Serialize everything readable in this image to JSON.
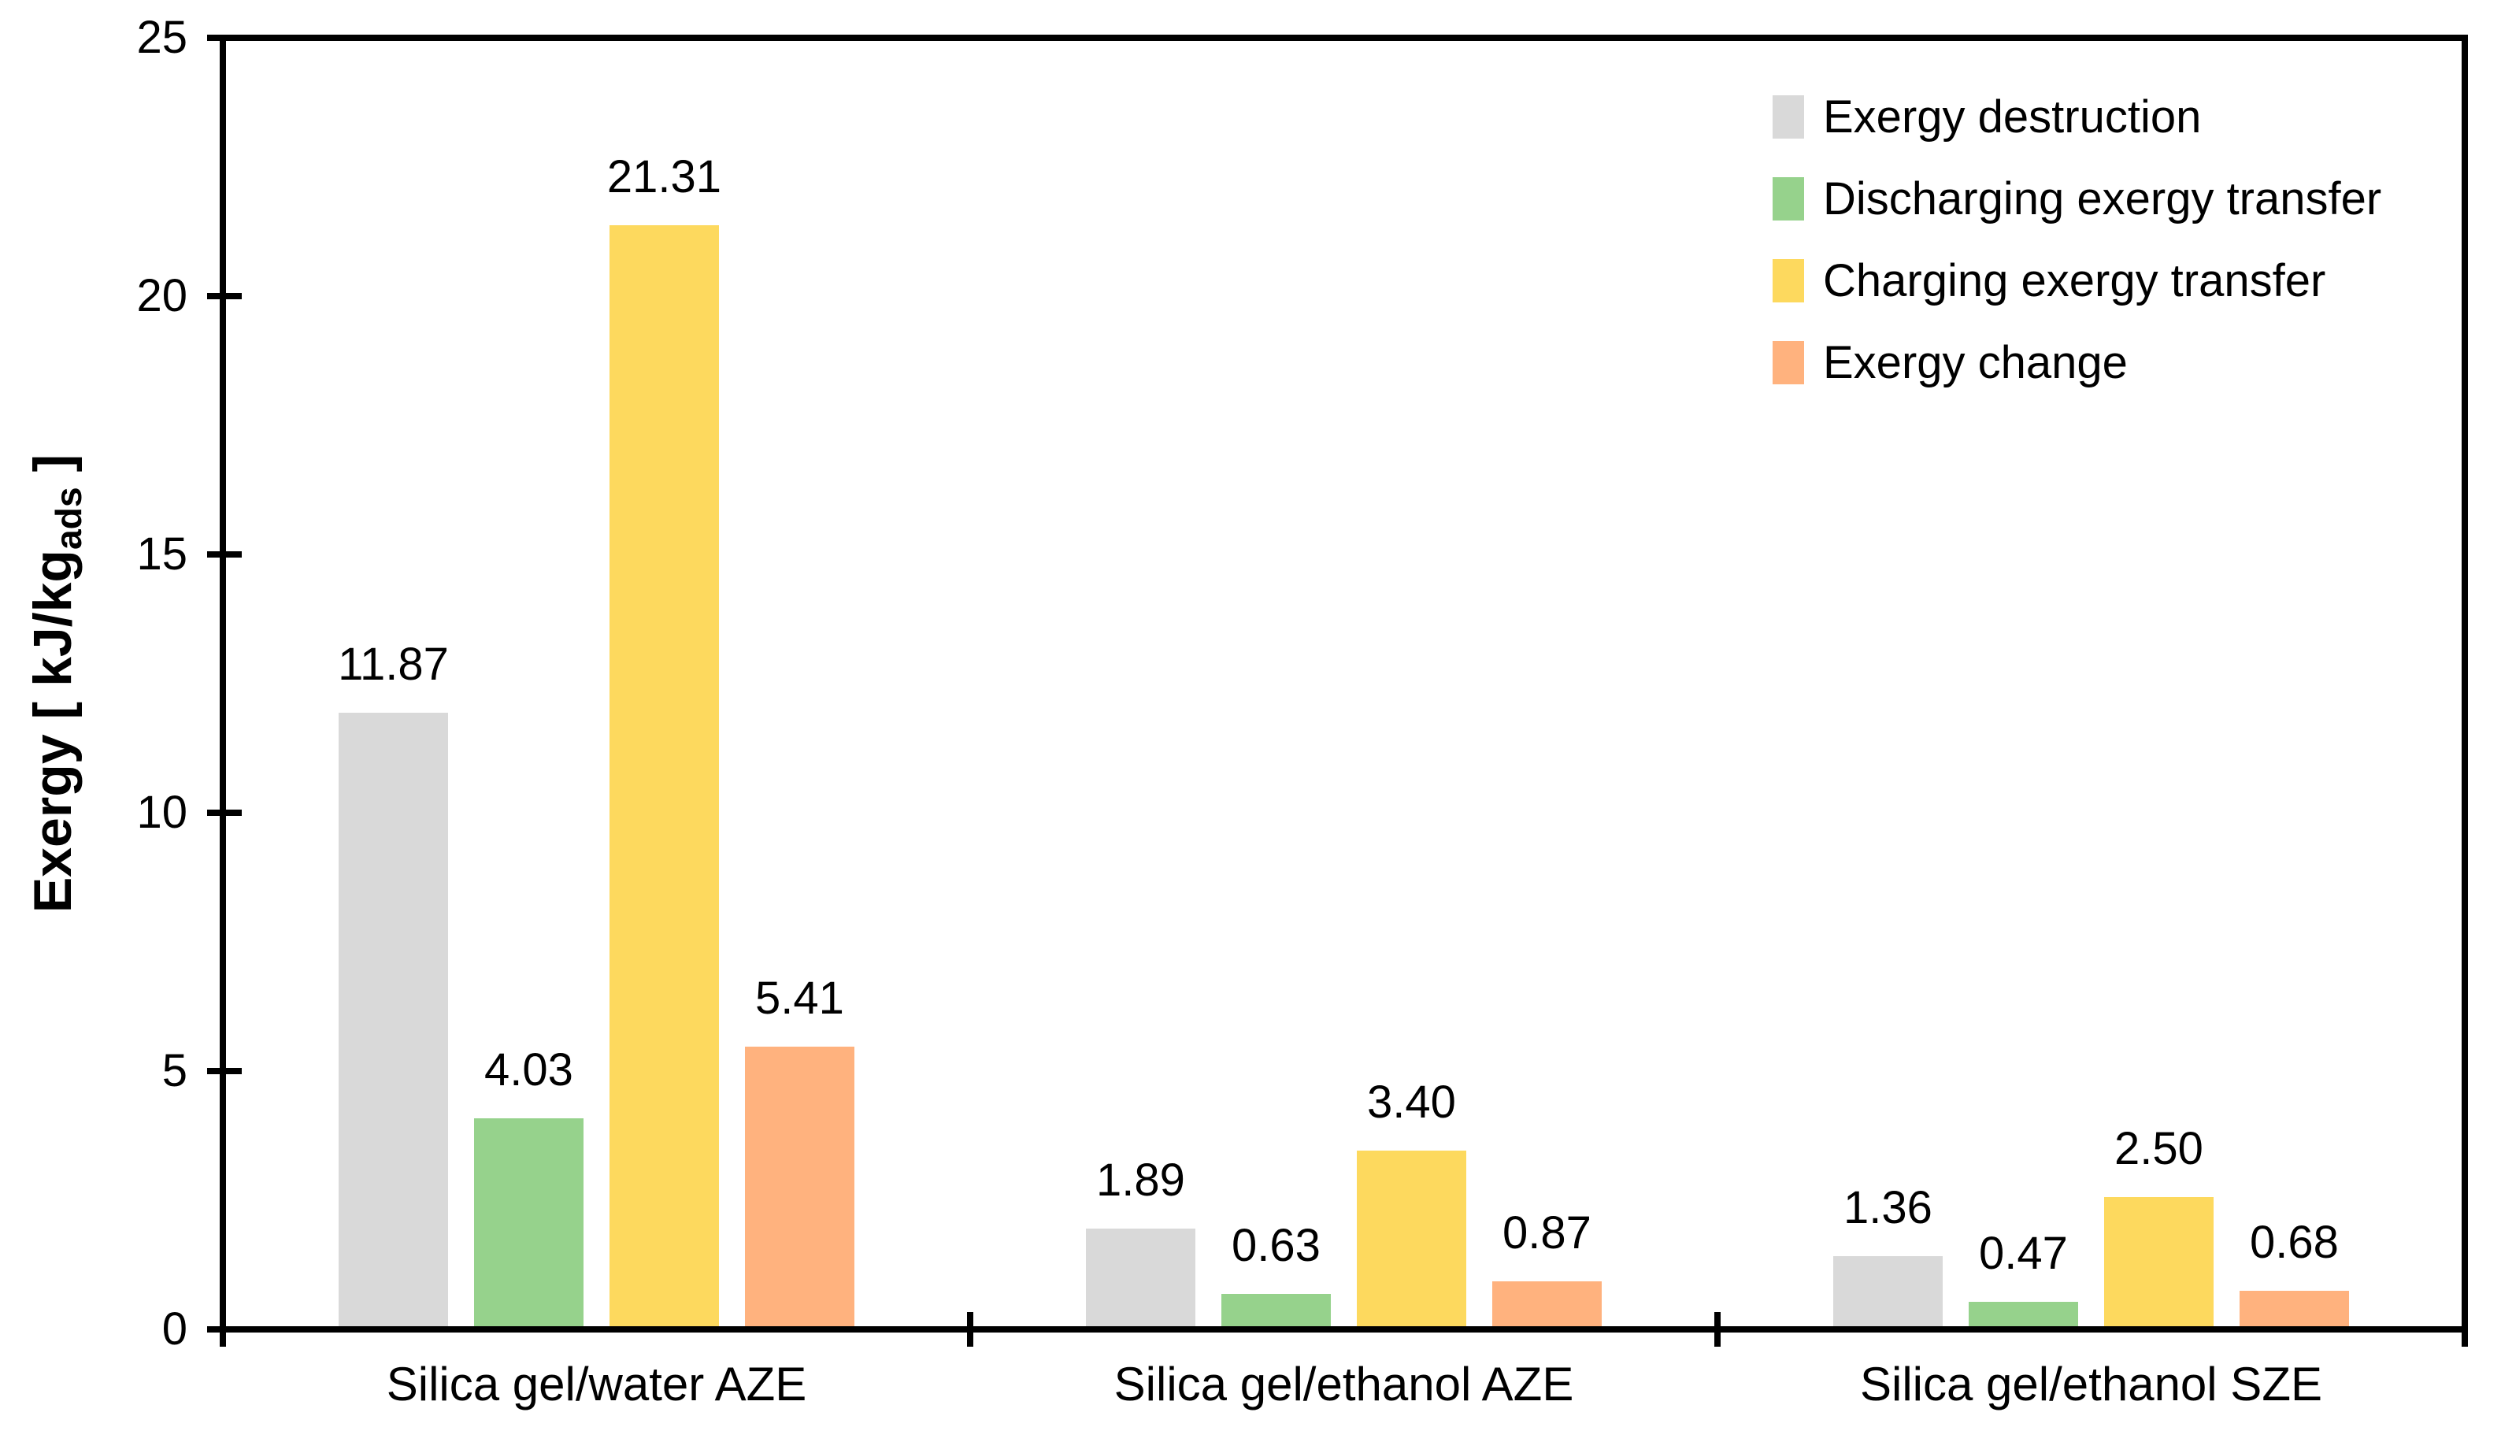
{
  "chart_data": {
    "type": "bar",
    "title": "",
    "ylabel_main": "Exergy [ kJ/kg",
    "ylabel_sub": "ads",
    "ylabel_close": " ]",
    "ylim": [
      0,
      25
    ],
    "yticks": [
      0,
      5,
      10,
      15,
      20,
      25
    ],
    "grid": false,
    "legend_position": "top-right",
    "axis_color": "#000000",
    "categories": [
      "Silica gel/water AZE",
      "Silica gel/ethanol AZE",
      "Silica gel/ethanol SZE"
    ],
    "series": [
      {
        "name": "Exergy destruction",
        "color": "#D9D9D9",
        "values": [
          11.87,
          1.89,
          1.36
        ],
        "labels": [
          "11.87",
          "1.89",
          "1.36"
        ]
      },
      {
        "name": "Discharging exergy transfer",
        "color": "#96D28C",
        "values": [
          4.03,
          0.63,
          0.47
        ],
        "labels": [
          "4.03",
          "0.63",
          "0.47"
        ]
      },
      {
        "name": "Charging exergy transfer",
        "color": "#FDD95E",
        "values": [
          21.31,
          3.4,
          2.5
        ],
        "labels": [
          "21.31",
          "3.40",
          "2.50"
        ]
      },
      {
        "name": "Exergy change",
        "color": "#FFB27E",
        "values": [
          5.41,
          0.87,
          0.68
        ],
        "labels": [
          "5.41",
          "0.87",
          "0.68"
        ]
      }
    ]
  }
}
